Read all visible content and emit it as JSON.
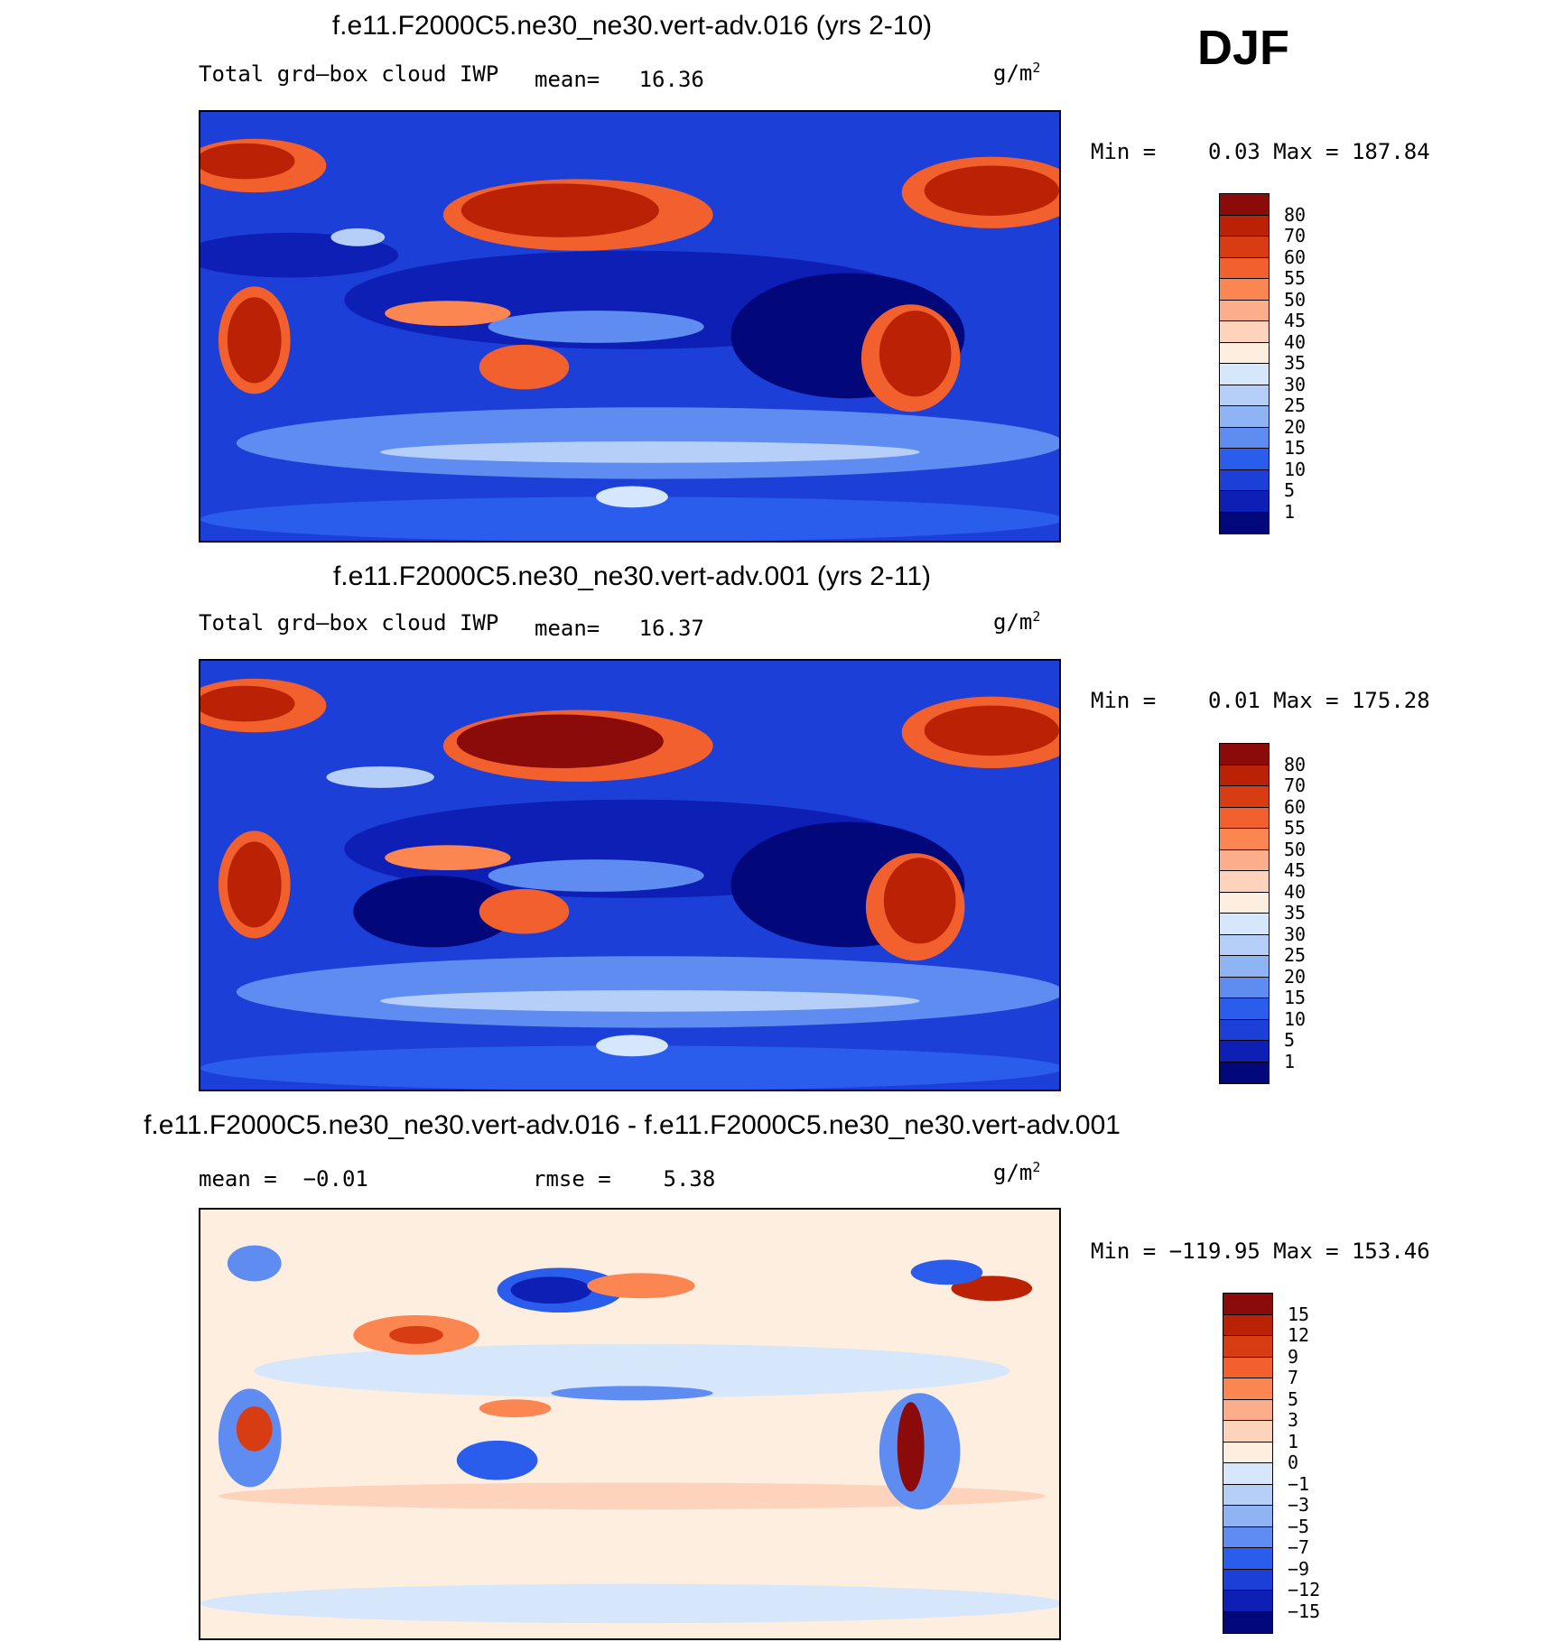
{
  "season": "DJF",
  "panels": [
    {
      "title": "f.e11.F2000C5.ne30_ne30.vert-adv.016 (yrs 2-10)",
      "left_label": "Total grd–box cloud IWP",
      "stat1": "mean=   16.36",
      "stat2": "",
      "units_base": "g/m",
      "units_exp": "2",
      "minmax": "Min =    0.03 Max = 187.84"
    },
    {
      "title": "f.e11.F2000C5.ne30_ne30.vert-adv.001 (yrs 2-11)",
      "left_label": "Total grd–box cloud IWP",
      "stat1": "mean=   16.37",
      "stat2": "",
      "units_base": "g/m",
      "units_exp": "2",
      "minmax": "Min =    0.01 Max = 175.28"
    },
    {
      "title": "f.e11.F2000C5.ne30_ne30.vert-adv.016 - f.e11.F2000C5.ne30_ne30.vert-adv.001",
      "left_label": "mean =  −0.01",
      "stat1": "rmse =    5.38",
      "stat2": "",
      "units_base": "g/m",
      "units_exp": "2",
      "minmax": "Min = −119.95 Max = 153.46"
    }
  ],
  "colorbar_abs": {
    "labels": [
      "80",
      "70",
      "60",
      "55",
      "50",
      "45",
      "40",
      "35",
      "30",
      "25",
      "20",
      "15",
      "10",
      "5",
      "1"
    ],
    "colors": [
      "#8b0a0a",
      "#bb2205",
      "#d83c12",
      "#f2612d",
      "#fb8652",
      "#fcae8c",
      "#fdd3bb",
      "#fdeedf",
      "#d6e6fb",
      "#b5cff8",
      "#8fb4f4",
      "#5e8cf0",
      "#2b5ded",
      "#1c3fd8",
      "#0d1fb4",
      "#02077a"
    ]
  },
  "colorbar_diff": {
    "labels": [
      "15",
      "12",
      "9",
      "7",
      "5",
      "3",
      "1",
      "0",
      "−1",
      "−3",
      "−5",
      "−7",
      "−9",
      "−12",
      "−15"
    ],
    "colors": [
      "#8b0a0a",
      "#bb2205",
      "#d83c12",
      "#f2612d",
      "#fb8652",
      "#fcae8c",
      "#fdd3bb",
      "#fdeedf",
      "#d6e6fb",
      "#b5cff8",
      "#8fb4f4",
      "#5e8cf0",
      "#2b5ded",
      "#1c3fd8",
      "#0d1fb4",
      "#02077a"
    ]
  },
  "chart_data": [
    {
      "type": "heatmap",
      "title": "f.e11.F2000C5.ne30_ne30.vert-adv.016 (yrs 2-10)",
      "variable": "Total grd-box cloud IWP",
      "units": "g/m^2",
      "season": "DJF",
      "mean": 16.36,
      "min": 0.03,
      "max": 187.84,
      "contour_levels": [
        1,
        5,
        10,
        15,
        20,
        25,
        30,
        35,
        40,
        45,
        50,
        55,
        60,
        70,
        80
      ],
      "projection": "cylindrical equidistant, Pacific-centered (0E to 360E)"
    },
    {
      "type": "heatmap",
      "title": "f.e11.F2000C5.ne30_ne30.vert-adv.001 (yrs 2-11)",
      "variable": "Total grd-box cloud IWP",
      "units": "g/m^2",
      "season": "DJF",
      "mean": 16.37,
      "min": 0.01,
      "max": 175.28,
      "contour_levels": [
        1,
        5,
        10,
        15,
        20,
        25,
        30,
        35,
        40,
        45,
        50,
        55,
        60,
        70,
        80
      ],
      "projection": "cylindrical equidistant, Pacific-centered (0E to 360E)"
    },
    {
      "type": "heatmap",
      "title": "f.e11.F2000C5.ne30_ne30.vert-adv.016 - f.e11.F2000C5.ne30_ne30.vert-adv.001",
      "units": "g/m^2",
      "season": "DJF",
      "mean": -0.01,
      "rmse": 5.38,
      "min": -119.95,
      "max": 153.46,
      "contour_levels": [
        -15,
        -12,
        -9,
        -7,
        -5,
        -3,
        -1,
        0,
        1,
        3,
        5,
        7,
        9,
        12,
        15
      ],
      "projection": "cylindrical equidistant, Pacific-centered (0E to 360E)"
    }
  ]
}
